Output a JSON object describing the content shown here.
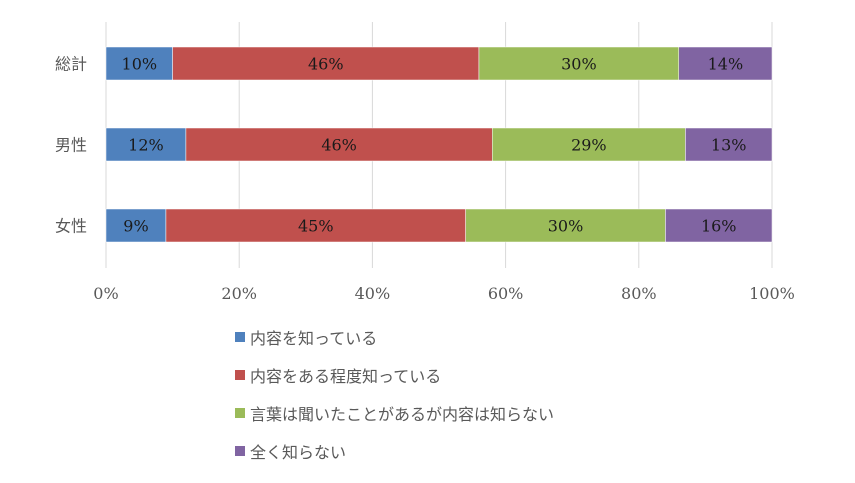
{
  "chart_data": {
    "type": "bar",
    "orientation": "horizontal",
    "stacked": true,
    "percent_stacked": true,
    "categories": [
      "総計",
      "男性",
      "女性"
    ],
    "series": [
      {
        "name": "内容を知っている",
        "color": "#4f81bd",
        "values": [
          10,
          12,
          9
        ],
        "labels": [
          "10%",
          "12%",
          "9%"
        ]
      },
      {
        "name": "内容をある程度知っている",
        "color": "#c0504d",
        "values": [
          46,
          46,
          45
        ],
        "labels": [
          "46%",
          "46%",
          "45%"
        ]
      },
      {
        "name": "言葉は聞いたことがあるが内容は知らない",
        "color": "#9bbb59",
        "values": [
          30,
          29,
          30
        ],
        "labels": [
          "30%",
          "29%",
          "30%"
        ]
      },
      {
        "name": "全く知らない",
        "color": "#8064a2",
        "values": [
          14,
          13,
          16
        ],
        "labels": [
          "14%",
          "13%",
          "16%"
        ]
      }
    ],
    "xlim": [
      0,
      100
    ],
    "xticks": [
      "0%",
      "20%",
      "40%",
      "60%",
      "80%",
      "100%"
    ],
    "grid": true,
    "legend_position": "bottom"
  }
}
